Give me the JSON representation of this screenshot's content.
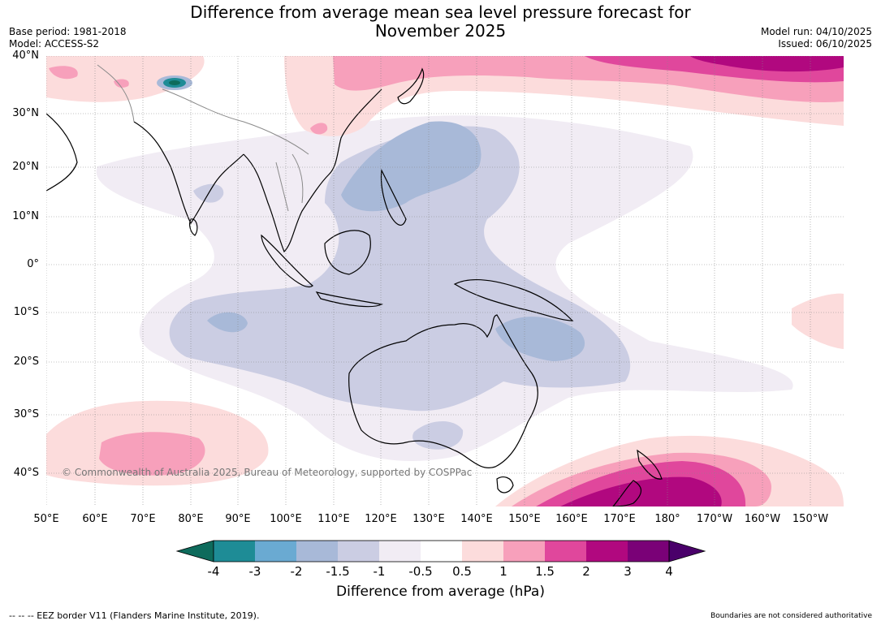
{
  "title_line1": "Difference from average mean sea level pressure forecast for",
  "title_line2": "November 2025",
  "base_period": "Base period: 1981-2018",
  "model": "Model: ACCESS-S2",
  "model_run": "Model run: 04/10/2025",
  "issued": "Issued: 06/10/2025",
  "lat_labels": [
    "40°N",
    "30°N",
    "20°N",
    "10°N",
    "0°",
    "10°S",
    "20°S",
    "30°S",
    "40°S"
  ],
  "lon_labels": [
    "50°E",
    "60°E",
    "70°E",
    "80°E",
    "90°E",
    "100°E",
    "110°E",
    "120°E",
    "130°E",
    "140°E",
    "150°E",
    "160°E",
    "170°E",
    "180°",
    "170°W",
    "160°W",
    "150°W"
  ],
  "colorbar": {
    "labels": [
      "-4",
      "-3",
      "-2",
      "-1.5",
      "-1",
      "-0.5",
      "0.5",
      "1",
      "1.5",
      "2",
      "3",
      "4"
    ],
    "colors": [
      "#0e6b5c",
      "#1e8c96",
      "#6aaad2",
      "#a8b9d8",
      "#cbcde3",
      "#f1ecf4",
      "#ffffff",
      "#fcdcdc",
      "#f7a0bb",
      "#e0479c",
      "#b1087f",
      "#7a0177",
      "#4a006a"
    ],
    "title": "Difference from average (hPa)"
  },
  "copyright": "© Commonwealth of Australia 2025, Bureau of Meteorology, supported by COSPPac",
  "footer_left": "--  --  -- EEZ border V11 (Flanders Marine Institute, 2019).",
  "footer_right": "Boundaries are not considered authoritative"
}
